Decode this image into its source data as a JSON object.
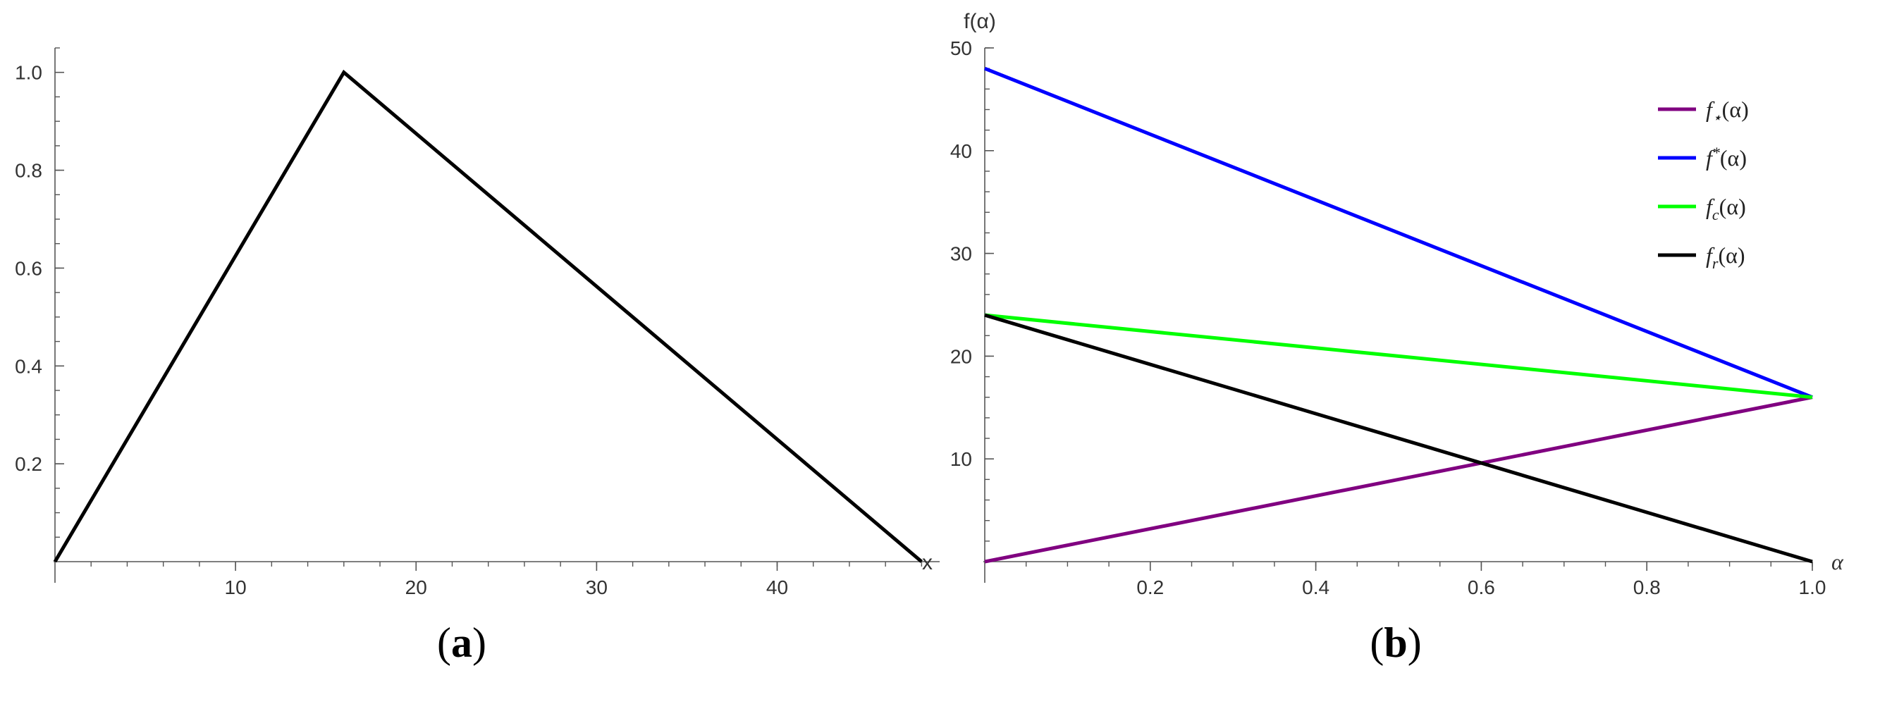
{
  "chart_data": [
    {
      "type": "line",
      "panel_label": "a",
      "xlabel": "x",
      "ylabel": "",
      "xlim": [
        0,
        49
      ],
      "ylim": [
        0,
        1.05
      ],
      "x_ticks": [
        10,
        20,
        30,
        40
      ],
      "y_ticks": [
        0.2,
        0.4,
        0.6,
        0.8,
        1.0
      ],
      "x_tick_labels": [
        "10",
        "20",
        "30",
        "40"
      ],
      "y_tick_labels": [
        "0.2",
        "0.4",
        "0.6",
        "0.8",
        "1.0"
      ],
      "grid": false,
      "series": [
        {
          "color": "#000000",
          "points": [
            [
              0,
              0
            ],
            [
              16,
              1
            ],
            [
              48,
              0
            ]
          ]
        }
      ]
    },
    {
      "type": "line",
      "panel_label": "b",
      "xlabel": "α",
      "ylabel": "f(α)",
      "xlim": [
        0,
        1
      ],
      "ylim": [
        0,
        50
      ],
      "x_ticks": [
        0.2,
        0.4,
        0.6,
        0.8,
        1.0
      ],
      "y_ticks": [
        10,
        20,
        30,
        40,
        50
      ],
      "x_tick_labels": [
        "0.2",
        "0.4",
        "0.6",
        "0.8",
        "1.0"
      ],
      "y_tick_labels": [
        "10",
        "20",
        "30",
        "40",
        "50"
      ],
      "grid": false,
      "legend_position": "top-right",
      "series": [
        {
          "name_base": "f",
          "name_mark": "⋆",
          "name_mark_type": "sub",
          "name_tail": "(α)",
          "color": "#800080",
          "points": [
            [
              0,
              0
            ],
            [
              1,
              16
            ]
          ]
        },
        {
          "name_base": "f",
          "name_mark": "*",
          "name_mark_type": "sup",
          "name_tail": "(α)",
          "color": "#0000ff",
          "points": [
            [
              0,
              48
            ],
            [
              1,
              16
            ]
          ]
        },
        {
          "name_base": "f",
          "name_mark": "c",
          "name_mark_type": "sub",
          "name_tail": "(α)",
          "color": "#00ff00",
          "points": [
            [
              0,
              24
            ],
            [
              1,
              16
            ]
          ]
        },
        {
          "name_base": "f",
          "name_mark": "r",
          "name_mark_type": "sub",
          "name_tail": "(α)",
          "color": "#000000",
          "points": [
            [
              0,
              24
            ],
            [
              1,
              0
            ]
          ]
        }
      ]
    }
  ]
}
